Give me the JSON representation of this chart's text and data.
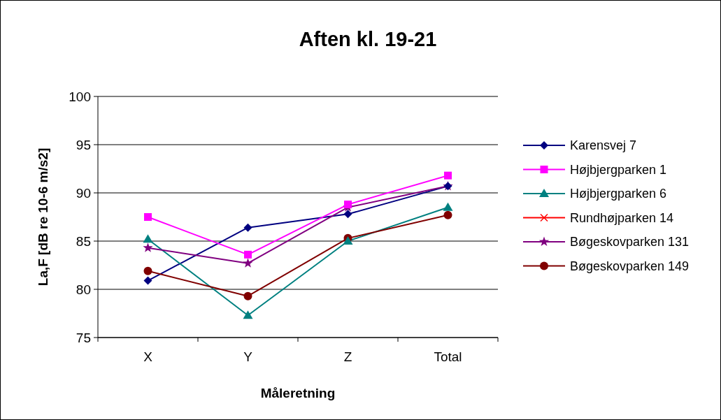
{
  "chart_data": {
    "type": "line",
    "title": "Aften kl. 19-21",
    "xlabel": "Måleretning",
    "ylabel": "La,F [dB re 10-6 m/s2]",
    "categories": [
      "X",
      "Y",
      "Z",
      "Total"
    ],
    "series": [
      {
        "name": "Karensvej 7",
        "color": "#000080",
        "marker": "diamond",
        "values": [
          80.9,
          86.4,
          87.8,
          90.7
        ]
      },
      {
        "name": "Højbjergparken 1",
        "color": "#ff00ff",
        "marker": "square",
        "values": [
          87.5,
          83.6,
          88.8,
          91.8
        ]
      },
      {
        "name": "Højbjergparken 6",
        "color": "#008080",
        "marker": "triangle",
        "values": [
          85.2,
          77.3,
          85.0,
          88.5
        ]
      },
      {
        "name": "Rundhøjparken 14",
        "color": "#ff0000",
        "marker": "cross",
        "values": [
          null,
          null,
          null,
          null
        ]
      },
      {
        "name": "Bøgeskovparken 131",
        "color": "#800080",
        "marker": "star",
        "values": [
          84.3,
          82.7,
          88.5,
          90.7
        ]
      },
      {
        "name": "Bøgeskovparken 149",
        "color": "#800000",
        "marker": "circle",
        "values": [
          81.9,
          79.3,
          85.3,
          87.7
        ]
      }
    ],
    "ylim": [
      75,
      100
    ],
    "yticks": [
      75,
      80,
      85,
      90,
      95,
      100
    ],
    "grid": "y",
    "legend": "right"
  }
}
